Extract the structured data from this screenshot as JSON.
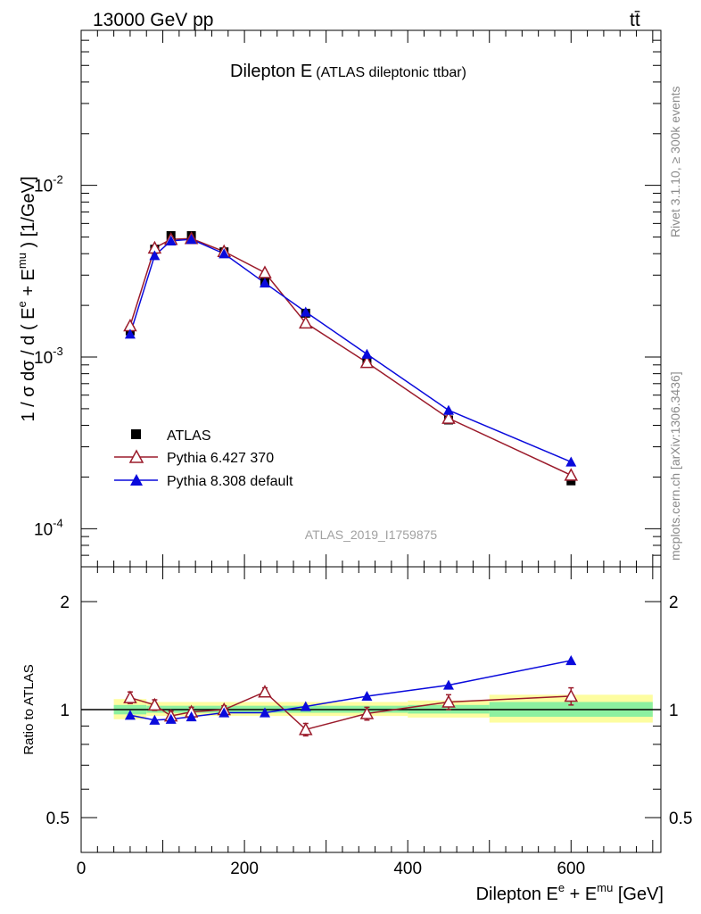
{
  "header": {
    "energy_label": "13000 GeV pp",
    "process_label": "tt̄"
  },
  "chart_data": [
    {
      "type": "scatter",
      "panel": "main",
      "title_main": "Dilepton E",
      "title_sub": "(ATLAS dileptonic ttbar)",
      "ylabel": "1 / σ dσ / d ( E^e + E^mu ) [1/GeV]",
      "y_scale": "log",
      "ylim": [
        6e-05,
        0.08
      ],
      "xlim": [
        0,
        710
      ],
      "y_ticks": [
        {
          "value": 0.01,
          "label": "10^-2"
        },
        {
          "value": 0.001,
          "label": "10^-3"
        },
        {
          "value": 0.0001,
          "label": "10^-4"
        }
      ],
      "analysis_id": "ATLAS_2019_I1759875",
      "legend": {
        "placement": "middle-left"
      },
      "series": [
        {
          "name": "ATLAS",
          "color": "#000000",
          "marker": "square",
          "x": [
            60,
            90,
            110,
            135,
            175,
            225,
            275,
            350,
            450,
            600
          ],
          "y": [
            0.00142,
            0.00425,
            0.0051,
            0.0051,
            0.0041,
            0.00275,
            0.0018,
            0.00095,
            0.00043,
            0.00019
          ]
        },
        {
          "name": "Pythia 6.427 370",
          "color": "#9b1b2b",
          "marker": "open-triangle",
          "x": [
            60,
            90,
            110,
            135,
            175,
            225,
            275,
            350,
            450,
            600
          ],
          "y": [
            0.00152,
            0.00432,
            0.00485,
            0.0049,
            0.00412,
            0.0031,
            0.00158,
            0.00093,
            0.00044,
            0.000205
          ]
        },
        {
          "name": "Pythia 8.308 default",
          "color": "#0a0adc",
          "marker": "filled-triangle",
          "x": [
            60,
            90,
            110,
            135,
            175,
            225,
            275,
            350,
            450,
            600
          ],
          "y": [
            0.00136,
            0.0039,
            0.00475,
            0.00485,
            0.004,
            0.0027,
            0.00183,
            0.00104,
            0.00049,
            0.000245
          ]
        }
      ]
    },
    {
      "type": "line",
      "panel": "ratio",
      "ylabel": "Ratio to ATLAS",
      "xlabel": "Dilepton E^e + E^mu [GeV]",
      "y_scale": "log",
      "ylim": [
        0.4,
        2.5
      ],
      "xlim": [
        0,
        710
      ],
      "y_ticks": [
        {
          "value": 0.5,
          "label": "0.5"
        },
        {
          "value": 1,
          "label": "1"
        },
        {
          "value": 2,
          "label": "2"
        }
      ],
      "x_ticks": [
        {
          "value": 0,
          "label": "0"
        },
        {
          "value": 200,
          "label": "200"
        },
        {
          "value": 400,
          "label": "400"
        },
        {
          "value": 600,
          "label": "600"
        }
      ],
      "uncertainty_bands": [
        {
          "x0": 40,
          "x1": 80,
          "lo": 0.94,
          "hi": 1.07,
          "inner_lo": 0.97,
          "inner_hi": 1.03
        },
        {
          "x0": 80,
          "x1": 400,
          "lo": 0.96,
          "hi": 1.05,
          "inner_lo": 0.98,
          "inner_hi": 1.025
        },
        {
          "x0": 400,
          "x1": 500,
          "lo": 0.95,
          "hi": 1.06,
          "inner_lo": 0.975,
          "inner_hi": 1.03
        },
        {
          "x0": 500,
          "x1": 700,
          "lo": 0.92,
          "hi": 1.1,
          "inner_lo": 0.955,
          "inner_hi": 1.05
        }
      ],
      "series": [
        {
          "name": "Pythia 6.427 370",
          "color": "#9b1b2b",
          "marker": "open-triangle",
          "x": [
            60,
            90,
            110,
            135,
            175,
            225,
            275,
            350,
            450,
            600
          ],
          "y": [
            1.08,
            1.03,
            0.96,
            0.985,
            1.0,
            1.12,
            0.88,
            0.975,
            1.05,
            1.09
          ],
          "err": [
            0.04,
            0.035,
            0.03,
            0.03,
            0.025,
            0.03,
            0.035,
            0.04,
            0.05,
            0.06
          ]
        },
        {
          "name": "Pythia 8.308 default",
          "color": "#0a0adc",
          "marker": "filled-triangle",
          "x": [
            60,
            90,
            110,
            135,
            175,
            225,
            275,
            350,
            450,
            600
          ],
          "y": [
            0.965,
            0.935,
            0.94,
            0.955,
            0.98,
            0.98,
            1.02,
            1.09,
            1.17,
            1.37
          ]
        }
      ]
    }
  ],
  "side_labels": {
    "rivet": "Rivet 3.1.10, ≥ 300k events",
    "mcplots": "mcplots.cern.ch [arXiv:1306.3436]"
  }
}
